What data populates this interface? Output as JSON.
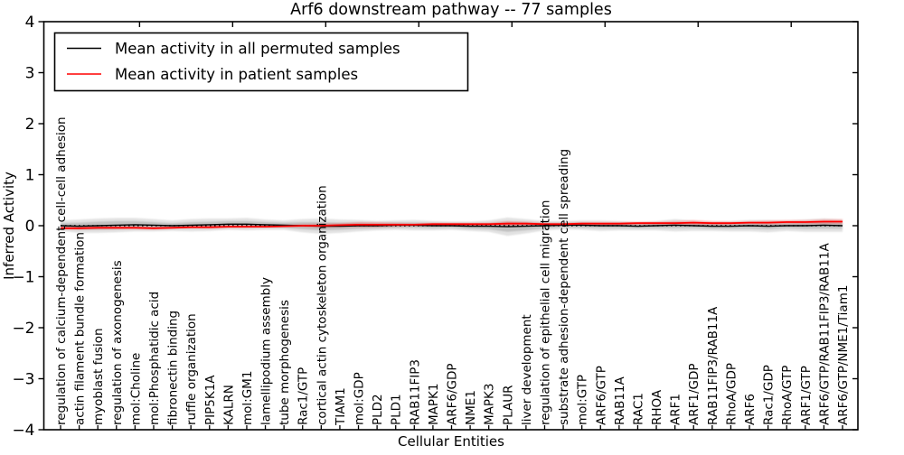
{
  "chart_data": {
    "type": "line",
    "title": "Arf6 downstream pathway -- 77 samples",
    "xlabel": "Cellular Entities",
    "ylabel": "Inferred Activity",
    "ylim": [
      -4,
      4
    ],
    "ytick_values": [
      4,
      3,
      2,
      1,
      0,
      -1,
      -2,
      -3,
      -4
    ],
    "ytick_labels": [
      "4",
      "3",
      "2",
      "1",
      "0",
      "−1",
      "−2",
      "−3",
      "−4"
    ],
    "grid": false,
    "legend_position": "upper left",
    "top_tick_category_indices": [
      4,
      9,
      14,
      19,
      24,
      29,
      34,
      39
    ],
    "categories": [
      "regulation of calcium-dependent cell-cell adhesion",
      "actin filament bundle formation",
      "myoblast fusion",
      "regulation of axonogenesis",
      "mol:Choline",
      "mol:Phosphatidic acid",
      "fibronectin binding",
      "ruffle organization",
      "PIP5K1A",
      "KALRN",
      "mol:GM1",
      "lamellipodium assembly",
      "tube morphogenesis",
      "Rac1/GTP",
      "cortical actin cytoskeleton organization",
      "TIAM1",
      "mol:GDP",
      "PLD2",
      "PLD1",
      "RAB11FIP3",
      "MAPK1",
      "ARF6/GDP",
      "NME1",
      "MAPK3",
      "PLAUR",
      "liver development",
      "regulation of epithelial cell migration",
      "substrate adhesion-dependent cell spreading",
      "mol:GTP",
      "ARF6/GTP",
      "RAB11A",
      "RAC1",
      "RHOA",
      "ARF1",
      "ARF1/GDP",
      "RAB11FIP3/RAB11A",
      "RhoA/GDP",
      "ARF6",
      "Rac1/GDP",
      "RhoA/GTP",
      "ARF1/GTP",
      "ARF6/GTP/RAB11FIP3/RAB11A",
      "ARF6/GTP/NME1/Tiam1"
    ],
    "series": [
      {
        "name": "Mean activity in all permuted samples",
        "color": "#000000",
        "values": [
          0,
          -0.01,
          0,
          0.01,
          0.02,
          0.01,
          0,
          0.01,
          0.02,
          0.03,
          0.03,
          0.02,
          0.01,
          0,
          -0.01,
          -0.01,
          0,
          0,
          0.01,
          0.01,
          0,
          0,
          -0.01,
          -0.01,
          -0.02,
          -0.01,
          0,
          0.01,
          0.01,
          0,
          0,
          -0.01,
          0,
          0.01,
          0,
          -0.01,
          -0.01,
          0,
          -0.01,
          0,
          0,
          0.01,
          0
        ]
      },
      {
        "name": "Mean activity in patient samples",
        "color": "#ff0000",
        "values": [
          -0.05,
          -0.05,
          -0.04,
          -0.04,
          -0.04,
          -0.05,
          -0.04,
          -0.03,
          -0.03,
          -0.02,
          -0.02,
          -0.02,
          -0.01,
          0,
          0,
          0.01,
          0.02,
          0.02,
          0.02,
          0.02,
          0.03,
          0.03,
          0.03,
          0.03,
          0.04,
          0.04,
          0.03,
          0.03,
          0.04,
          0.04,
          0.04,
          0.05,
          0.05,
          0.05,
          0.06,
          0.05,
          0.05,
          0.06,
          0.06,
          0.07,
          0.07,
          0.08,
          0.08
        ]
      }
    ],
    "bands": [
      {
        "name": "permuted-range-outer",
        "color": "#bfbfbf",
        "opacity": 0.45,
        "center_on_series": 0,
        "half_widths": [
          0.1,
          0.13,
          0.14,
          0.14,
          0.13,
          0.12,
          0.1,
          0.12,
          0.12,
          0.11,
          0.12,
          0.1,
          0.09,
          0.13,
          0.15,
          0.13,
          0.11,
          0.09,
          0.09,
          0.1,
          0.09,
          0.08,
          0.09,
          0.11,
          0.18,
          0.14,
          0.09,
          0.08,
          0.09,
          0.1,
          0.09,
          0.08,
          0.09,
          0.12,
          0.1,
          0.09,
          0.1,
          0.11,
          0.12,
          0.1,
          0.12,
          0.13,
          0.12
        ]
      },
      {
        "name": "permuted-range-inner",
        "color": "#9a9a9a",
        "opacity": 0.45,
        "center_on_series": 0,
        "half_widths": [
          0.05,
          0.07,
          0.08,
          0.08,
          0.07,
          0.06,
          0.05,
          0.06,
          0.06,
          0.06,
          0.06,
          0.05,
          0.05,
          0.07,
          0.08,
          0.07,
          0.06,
          0.05,
          0.05,
          0.05,
          0.05,
          0.04,
          0.05,
          0.06,
          0.1,
          0.08,
          0.05,
          0.04,
          0.05,
          0.05,
          0.05,
          0.04,
          0.05,
          0.06,
          0.05,
          0.05,
          0.05,
          0.06,
          0.06,
          0.05,
          0.06,
          0.07,
          0.06
        ]
      },
      {
        "name": "patient-range",
        "color": "#ff0000",
        "opacity": 0.22,
        "center_on_series": 1,
        "half_widths": [
          0.03,
          0.03,
          0.03,
          0.03,
          0.03,
          0.03,
          0.02,
          0.02,
          0.03,
          0.03,
          0.03,
          0.02,
          0.02,
          0.03,
          0.04,
          0.04,
          0.05,
          0.05,
          0.04,
          0.03,
          0.03,
          0.03,
          0.03,
          0.03,
          0.05,
          0.04,
          0.03,
          0.03,
          0.03,
          0.03,
          0.03,
          0.03,
          0.03,
          0.04,
          0.05,
          0.04,
          0.03,
          0.03,
          0.04,
          0.04,
          0.04,
          0.05,
          0.05
        ]
      }
    ],
    "zero_line": {
      "value": 0,
      "color": "#000000",
      "style": "dotted"
    }
  }
}
